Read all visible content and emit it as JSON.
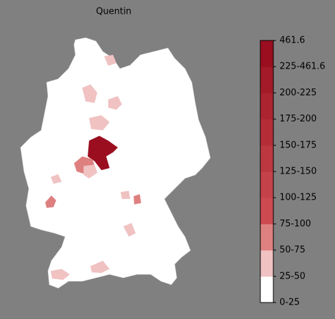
{
  "title": "Quentin",
  "colorbar": {
    "labels": [
      "0-25",
      "25-50",
      "50-75",
      "75-100",
      "100-125",
      "125-150",
      "150-175",
      "175-200",
      "200-225",
      "225-461.6",
      "461.6"
    ],
    "colors": [
      "#ffffff",
      "#f0c2c2",
      "#de8080",
      "#cc4a50",
      "#c4424a",
      "#bc3840",
      "#b42e38",
      "#ac2430",
      "#a41a28",
      "#9a0e20"
    ]
  }
}
